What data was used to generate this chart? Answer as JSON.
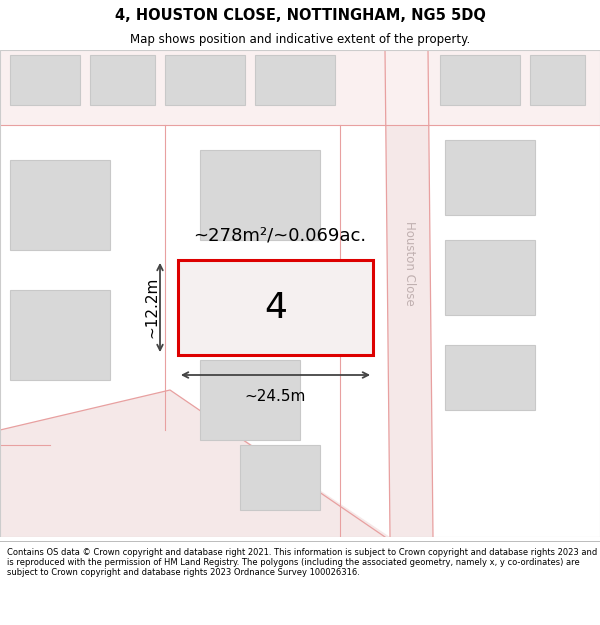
{
  "title": "4, HOUSTON CLOSE, NOTTINGHAM, NG5 5DQ",
  "subtitle": "Map shows position and indicative extent of the property.",
  "footer": "Contains OS data © Crown copyright and database right 2021. This information is subject to Crown copyright and database rights 2023 and is reproduced with the permission of HM Land Registry. The polygons (including the associated geometry, namely x, y co-ordinates) are subject to Crown copyright and database rights 2023 Ordnance Survey 100026316.",
  "map_bg": "#ffffff",
  "road_fill": "#f5e8e8",
  "road_line": "#e8a0a0",
  "building_fill": "#d8d8d8",
  "building_edge": "#c8c8c8",
  "highlight_fill": "#f5f0f0",
  "highlight_edge": "#dd0000",
  "highlight_lw": 2.2,
  "street_label_color": "#c0b0b0",
  "dim_color": "#444444",
  "area_label": "~278m²/~0.069ac.",
  "width_label": "~24.5m",
  "height_label": "~12.2m",
  "plot_number": "4",
  "street_name": "Houston Close",
  "title_fontsize": 10.5,
  "subtitle_fontsize": 8.5,
  "footer_fontsize": 6.0
}
